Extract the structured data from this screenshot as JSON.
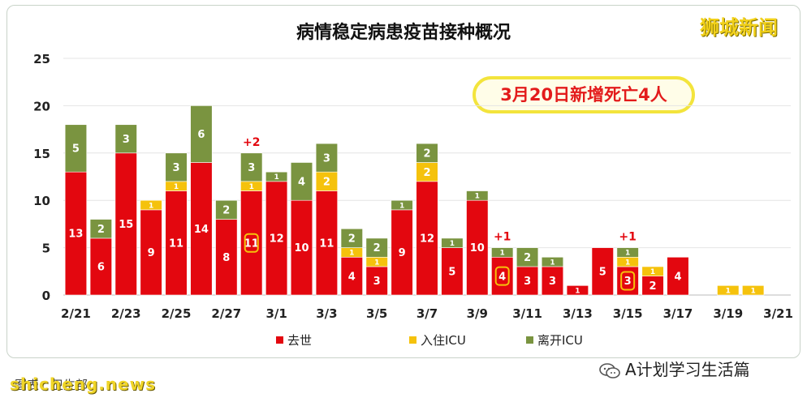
{
  "brand": "狮城新闻",
  "callout": "3月20日新增死亡4人",
  "source_caption": "图表：卫生部",
  "watermark_left": "shicheng.news",
  "watermark_right": "A计划学习生活篇",
  "colors": {
    "death": "#e3070f",
    "icu_in": "#f5c20c",
    "icu_out": "#7a9440",
    "callout_border": "#f3e43c"
  },
  "chart_data": {
    "type": "bar",
    "stacked": true,
    "title": "病情稳定病患疫苗接种概况",
    "ylim": [
      0,
      25
    ],
    "yticks": [
      0,
      5,
      10,
      15,
      20,
      25
    ],
    "grid": true,
    "legend_position": "bottom",
    "categories": [
      "2/21",
      "2/22",
      "2/23",
      "2/24",
      "2/25",
      "2/26",
      "2/27",
      "2/28",
      "3/1",
      "3/2",
      "3/3",
      "3/4",
      "3/5",
      "3/6",
      "3/7",
      "3/8",
      "3/9",
      "3/10",
      "3/11",
      "3/12",
      "3/13",
      "3/14",
      "3/15",
      "3/16",
      "3/17",
      "3/18",
      "3/19",
      "3/20",
      "3/21"
    ],
    "xtick_labels": [
      "2/21",
      "2/23",
      "2/25",
      "2/27",
      "3/1",
      "3/3",
      "3/5",
      "3/7",
      "3/9",
      "3/11",
      "3/13",
      "3/15",
      "3/17",
      "3/19",
      "3/21"
    ],
    "series": [
      {
        "name": "去世",
        "values": [
          13,
          6,
          15,
          9,
          11,
          14,
          8,
          11,
          12,
          10,
          11,
          4,
          3,
          9,
          12,
          5,
          10,
          4,
          3,
          3,
          1,
          5,
          3,
          2,
          4,
          0,
          0,
          0,
          0
        ]
      },
      {
        "name": "入住ICU",
        "values": [
          0,
          0,
          0,
          1,
          1,
          0,
          0,
          1,
          0,
          0,
          2,
          1,
          1,
          0,
          2,
          0,
          0,
          0,
          0,
          0,
          0,
          0,
          1,
          1,
          0,
          0,
          1,
          1,
          0
        ]
      },
      {
        "name": "离开ICU",
        "values": [
          5,
          2,
          3,
          0,
          3,
          6,
          2,
          3,
          1,
          4,
          3,
          2,
          2,
          1,
          2,
          1,
          1,
          1,
          2,
          1,
          0,
          0,
          1,
          0,
          0,
          0,
          0,
          0,
          0
        ]
      }
    ],
    "annotations": [
      {
        "category": "2/28",
        "text": "+2"
      },
      {
        "category": "3/10",
        "text": "+1"
      },
      {
        "category": "3/15",
        "text": "+1"
      }
    ],
    "highlighted_death_values": [
      "2/28",
      "3/10",
      "3/15"
    ]
  }
}
